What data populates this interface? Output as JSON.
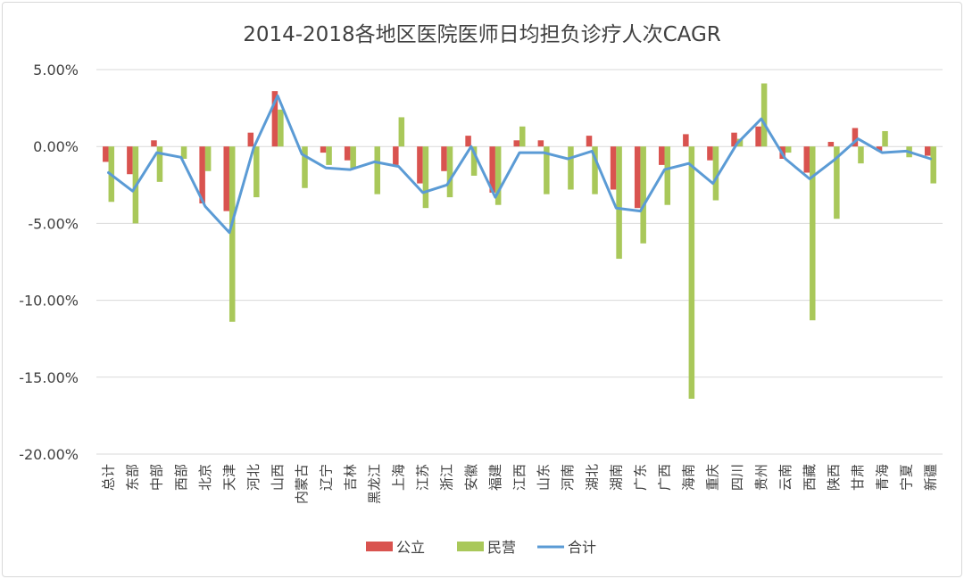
{
  "chart_data": {
    "type": "bar",
    "title": "2014-2018各地区医院医师日均担负诊疗人次CAGR",
    "xlabel": "",
    "ylabel": "",
    "ylim": [
      -20,
      5
    ],
    "yticks": [
      5,
      0,
      -5,
      -10,
      -15,
      -20
    ],
    "ytick_labels": [
      "5.00%",
      "0.00%",
      "-5.00%",
      "-10.00%",
      "-15.00%",
      "-20.00%"
    ],
    "grid": true,
    "legend_position": "bottom",
    "categories": [
      "总计",
      "东部",
      "中部",
      "西部",
      "北京",
      "天津",
      "河北",
      "山西",
      "内蒙古",
      "辽宁",
      "吉林",
      "黑龙江",
      "上海",
      "江苏",
      "浙江",
      "安徽",
      "福建",
      "江西",
      "山东",
      "河南",
      "湖北",
      "湖南",
      "广东",
      "广西",
      "海南",
      "重庆",
      "四川",
      "贵州",
      "云南",
      "西藏",
      "陕西",
      "甘肃",
      "青海",
      "宁夏",
      "新疆"
    ],
    "series": [
      {
        "name": "公立",
        "type": "bar",
        "color": "#d9534f",
        "values": [
          -1.0,
          -1.8,
          0.4,
          0.0,
          -3.7,
          -4.2,
          0.9,
          3.6,
          0.0,
          -0.4,
          -0.9,
          0.0,
          -1.2,
          -2.4,
          -1.6,
          0.7,
          -3.0,
          0.4,
          0.4,
          0.0,
          0.7,
          -2.8,
          -4.0,
          -1.2,
          0.8,
          -0.9,
          0.9,
          1.3,
          -0.8,
          -1.7,
          0.3,
          1.2,
          -0.3,
          0.0,
          -0.6
        ]
      },
      {
        "name": "民营",
        "type": "bar",
        "color": "#a9c85a",
        "values": [
          -3.6,
          -5.0,
          -2.3,
          -0.8,
          -1.6,
          -11.4,
          -3.3,
          2.4,
          -2.7,
          -1.2,
          -1.4,
          -3.1,
          1.9,
          -4.0,
          -3.3,
          -1.9,
          -3.8,
          1.3,
          -3.1,
          -2.8,
          -3.1,
          -7.3,
          -6.3,
          -3.8,
          -16.4,
          -3.5,
          0.5,
          4.1,
          -0.4,
          -11.3,
          -4.7,
          -1.1,
          1.0,
          -0.7,
          -2.4
        ]
      },
      {
        "name": "合计",
        "type": "line",
        "color": "#5b9bd5",
        "values": [
          -1.7,
          -2.9,
          -0.4,
          -0.7,
          -3.9,
          -5.6,
          -0.1,
          3.3,
          -0.5,
          -1.4,
          -1.5,
          -1.0,
          -1.3,
          -3.0,
          -2.5,
          0.0,
          -3.3,
          -0.4,
          -0.4,
          -0.8,
          -0.3,
          -4.0,
          -4.2,
          -1.5,
          -1.1,
          -2.4,
          0.2,
          1.8,
          -0.8,
          -2.1,
          -0.9,
          0.5,
          -0.4,
          -0.3,
          -0.8
        ]
      }
    ]
  }
}
